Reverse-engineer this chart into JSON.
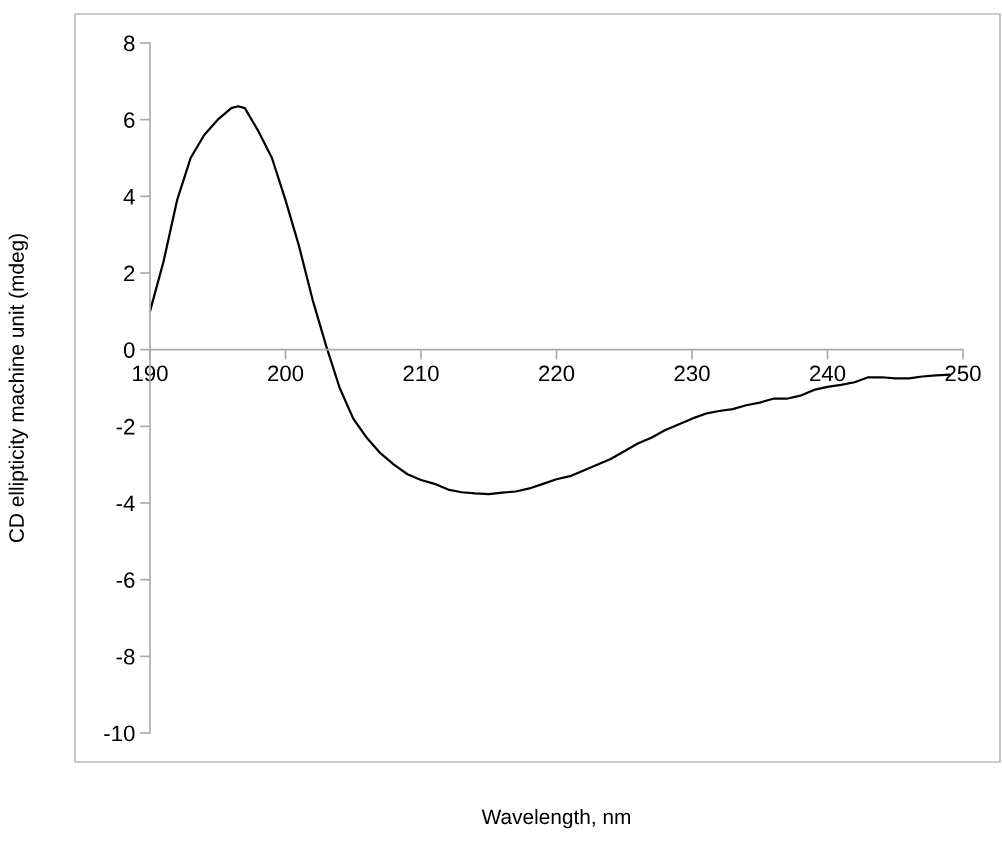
{
  "chart_data": {
    "type": "line",
    "xlabel": "Wavelength, nm",
    "ylabel": "CD ellipticity machine unit (mdeg)",
    "x": [
      190,
      191,
      192,
      193,
      194,
      195,
      196,
      196.5,
      197,
      198,
      199,
      200,
      201,
      202,
      203,
      204,
      205,
      206,
      207,
      208,
      209,
      210,
      211,
      212,
      213,
      214,
      215,
      216,
      217,
      218,
      219,
      220,
      221,
      222,
      223,
      224,
      225,
      226,
      227,
      228,
      229,
      230,
      231,
      232,
      233,
      234,
      235,
      236,
      237,
      238,
      239,
      240,
      241,
      242,
      243,
      244,
      245,
      246,
      247,
      248,
      249
    ],
    "series": [
      {
        "color": "#000000",
        "values": [
          1.0,
          2.3,
          3.9,
          5.0,
          5.6,
          6.0,
          6.3,
          6.35,
          6.3,
          5.7,
          5.0,
          3.9,
          2.7,
          1.3,
          0.1,
          -1.0,
          -1.8,
          -2.3,
          -2.7,
          -3.0,
          -3.25,
          -3.4,
          -3.5,
          -3.65,
          -3.72,
          -3.75,
          -3.77,
          -3.73,
          -3.7,
          -3.62,
          -3.5,
          -3.38,
          -3.3,
          -3.15,
          -3.0,
          -2.85,
          -2.65,
          -2.45,
          -2.3,
          -2.1,
          -1.95,
          -1.8,
          -1.67,
          -1.6,
          -1.55,
          -1.45,
          -1.38,
          -1.28,
          -1.28,
          -1.2,
          -1.05,
          -0.97,
          -0.92,
          -0.85,
          -0.72,
          -0.72,
          -0.75,
          -0.75,
          -0.7,
          -0.67,
          -0.65
        ]
      }
    ],
    "xlim": [
      190,
      250
    ],
    "xticks": [
      190,
      200,
      210,
      220,
      230,
      240,
      250
    ],
    "ylim": [
      -10,
      8
    ],
    "yticks": [
      -10,
      -8,
      -6,
      -4,
      -2,
      0,
      2,
      4,
      6,
      8
    ],
    "grid": false,
    "marker": "none",
    "line_style": "solid"
  }
}
